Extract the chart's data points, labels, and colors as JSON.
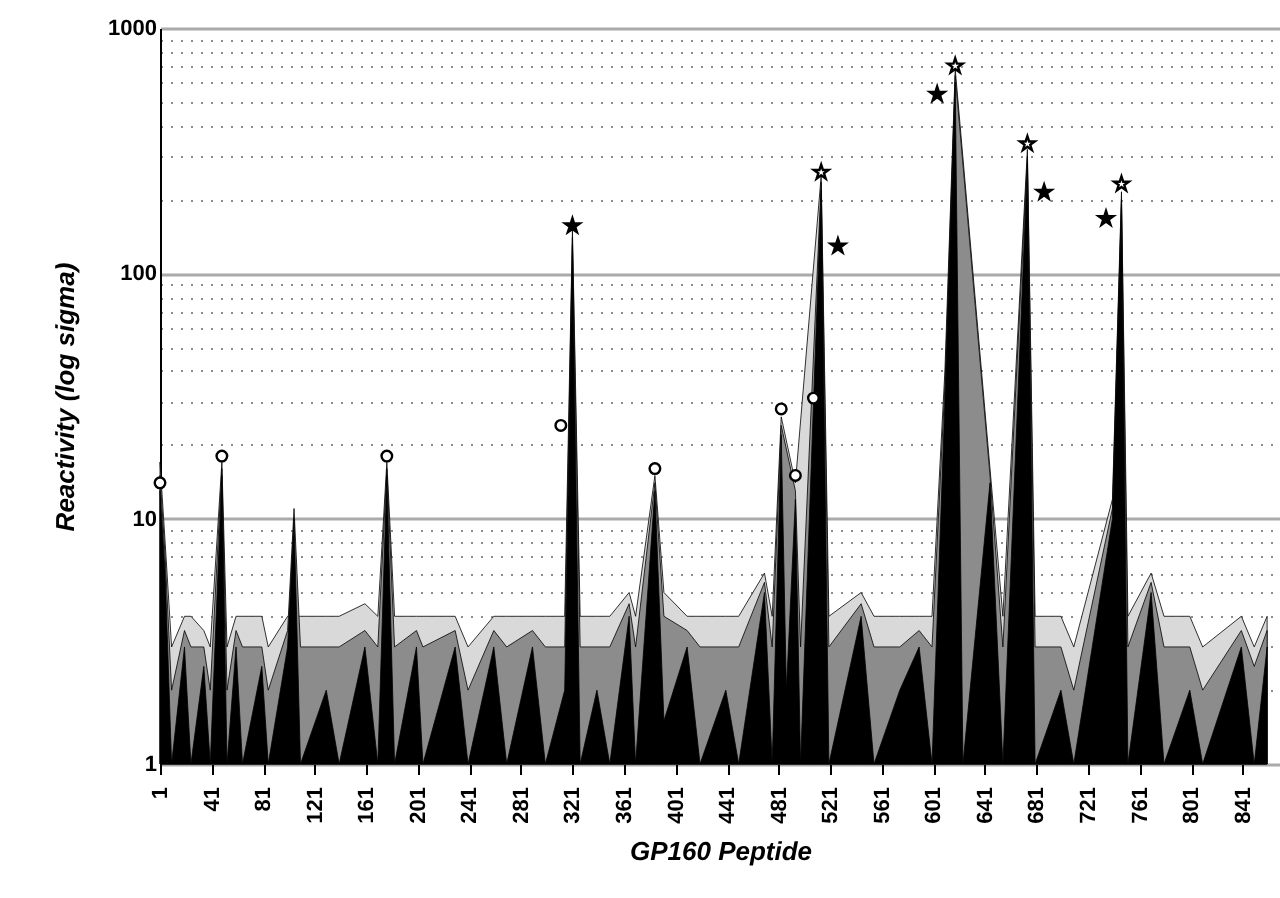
{
  "chart_data": {
    "type": "area",
    "xlabel": "GP160  Peptide",
    "ylabel": "Reactivity  (log  sigma)",
    "log": "y",
    "grid": "y",
    "xlim": [
      1,
      870
    ],
    "xticks": [
      1,
      41,
      81,
      121,
      161,
      201,
      241,
      281,
      321,
      361,
      401,
      441,
      481,
      521,
      561,
      601,
      641,
      681,
      721,
      761,
      801,
      841
    ],
    "ylim": [
      1,
      1000
    ],
    "yticks": [
      1,
      {
        "value": 2,
        "label": null
      },
      {
        "value": 3,
        "label": null
      },
      {
        "value": 4,
        "label": null
      },
      {
        "value": 5,
        "label": null
      },
      {
        "value": 6,
        "label": null
      },
      {
        "value": 7,
        "label": null
      },
      {
        "value": 8,
        "label": null
      },
      {
        "value": 9,
        "label": null
      },
      10,
      {
        "value": 20,
        "label": null
      },
      {
        "value": 30,
        "label": null
      },
      {
        "value": 40,
        "label": null
      },
      {
        "value": 50,
        "label": null
      },
      {
        "value": 60,
        "label": null
      },
      {
        "value": 70,
        "label": null
      },
      {
        "value": 80,
        "label": null
      },
      {
        "value": 90,
        "label": null
      },
      100,
      {
        "value": 200,
        "label": null
      },
      {
        "value": 300,
        "label": null
      },
      {
        "value": 400,
        "label": null
      },
      {
        "value": 500,
        "label": null
      },
      {
        "value": 600,
        "label": null
      },
      {
        "value": 700,
        "label": null
      },
      {
        "value": 800,
        "label": null
      },
      {
        "value": 900,
        "label": null
      },
      1000
    ],
    "x": [
      1,
      5,
      10,
      20,
      25,
      35,
      40,
      49,
      53,
      60,
      65,
      80,
      85,
      100,
      105,
      110,
      130,
      140,
      160,
      170,
      177,
      183,
      200,
      205,
      230,
      240,
      260,
      270,
      290,
      300,
      315,
      321,
      327,
      340,
      350,
      365,
      370,
      385,
      392,
      410,
      420,
      440,
      450,
      470,
      476,
      483,
      487,
      494,
      498,
      514,
      520,
      545,
      555,
      575,
      590,
      600,
      610,
      618,
      624,
      645,
      655,
      674,
      680,
      700,
      710,
      740,
      747,
      752,
      770,
      780,
      800,
      810,
      840,
      850,
      860
    ],
    "series": [
      {
        "color": "#d9d9d9",
        "values": [
          17,
          8,
          3,
          4,
          4,
          3.5,
          3,
          17,
          3,
          4,
          4,
          4,
          3,
          4,
          null,
          4,
          4,
          4,
          4.5,
          4,
          17,
          4,
          4,
          4,
          4,
          3,
          4,
          4,
          4,
          4,
          4,
          150,
          4,
          4,
          4,
          5,
          4,
          15,
          5,
          4,
          4,
          4,
          4,
          6,
          4,
          26,
          null,
          14,
          null,
          250,
          4,
          5,
          4,
          4,
          4,
          4,
          40,
          680,
          null,
          16,
          4,
          320,
          4,
          4,
          3,
          12,
          215,
          4,
          6,
          4,
          4,
          3,
          4,
          3,
          4
        ]
      },
      {
        "color": "#8c8c8c",
        "values": [
          15,
          7,
          2,
          3.5,
          3,
          3,
          2,
          16,
          2,
          3.5,
          3,
          3,
          2,
          3.5,
          11,
          3,
          3,
          3,
          3.5,
          3,
          16,
          3,
          3.5,
          3,
          3.5,
          2,
          3.5,
          3,
          3.5,
          3,
          3,
          140,
          3,
          3,
          3,
          4.5,
          3,
          14,
          4,
          3.5,
          3,
          3,
          3,
          5.5,
          3,
          24,
          null,
          13,
          3,
          235,
          3,
          4.5,
          3,
          3,
          3.5,
          3,
          35,
          640,
          null,
          15,
          3,
          300,
          3,
          3,
          2,
          11,
          200,
          3,
          5.5,
          3,
          3,
          2,
          3.5,
          2.5,
          3.5
        ]
      },
      {
        "color": "#000000",
        "values": [
          13,
          6,
          1,
          3,
          1,
          2.5,
          1,
          15,
          1,
          3,
          1,
          2.5,
          1,
          3,
          10,
          1,
          2,
          1,
          3,
          1,
          15,
          1,
          3,
          1,
          3,
          1,
          3,
          1,
          3,
          1,
          2,
          130,
          1,
          2,
          1,
          4,
          1,
          13,
          1.5,
          3,
          1,
          2,
          1,
          5,
          1,
          22,
          2,
          12,
          1,
          220,
          1,
          4,
          1,
          2,
          3,
          1,
          30,
          600,
          1,
          14,
          1,
          280,
          1,
          2,
          1,
          10,
          190,
          1,
          5,
          1,
          2,
          1,
          3,
          1,
          3
        ]
      },
      {
        "type": "scatter",
        "marker": "circle",
        "color": "#ffffff",
        "x": [
          1,
          49,
          177,
          312,
          385,
          483,
          494,
          508
        ],
        "values": [
          14,
          18,
          18,
          24,
          16,
          28,
          15,
          31
        ]
      },
      {
        "type": "scatter",
        "marker": "star",
        "color": "#000000",
        "x": [
          321,
          527,
          604,
          687,
          735
        ],
        "values": [
          156,
          129,
          537,
          214,
          167
        ]
      },
      {
        "type": "scatter",
        "marker": "star",
        "color": "#ffffff",
        "x": [
          514,
          618,
          674,
          747
        ],
        "values": [
          258,
          700,
          337,
          231
        ]
      }
    ]
  }
}
